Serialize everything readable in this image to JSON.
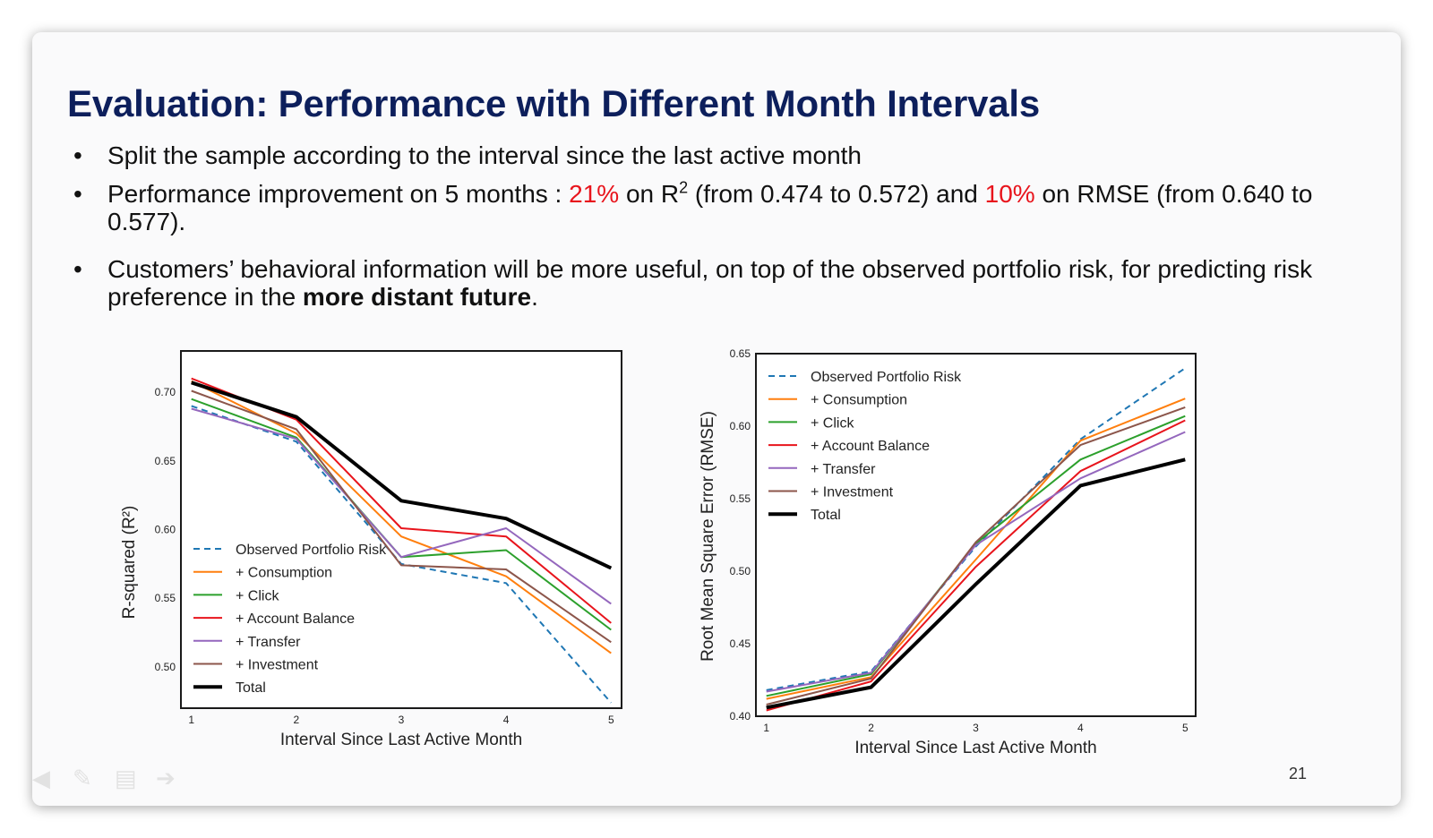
{
  "slide": {
    "title": "Evaluation: Performance with Different Month Intervals",
    "bullet1": "Split the sample according to the interval since the last active month",
    "bullet2": {
      "p1": "Performance improvement on 5 months : ",
      "pct1": "21%",
      "p2": " on R",
      "sup": "2",
      "p3": " (from 0.474 to 0.572) and ",
      "pct2": "10%",
      "p4": " on RMSE (from 0.640 to 0.577)."
    },
    "bullet3": {
      "p1": "Customers’ behavioral information will be more useful, on top of the observed portfolio risk, for predicting risk preference in the ",
      "bold": "more distant future",
      "p2": "."
    },
    "bullet_symbol": "•",
    "page_number": "21",
    "colors": {
      "title": "#0d1f5c",
      "highlight": "#e8141c"
    }
  },
  "chart_data": [
    {
      "type": "line",
      "xlabel": "Interval Since Last Active Month",
      "ylabel": "R-squared (R²)",
      "x": [
        1,
        2,
        3,
        4,
        5
      ],
      "xlim": [
        0.9,
        5.1
      ],
      "ylim": [
        0.47,
        0.73
      ],
      "yticks": [
        "0.50",
        "0.55",
        "0.60",
        "0.65",
        "0.70"
      ],
      "ytick_values": [
        0.5,
        0.55,
        0.6,
        0.65,
        0.7
      ],
      "legend_position": "bottom-left",
      "grid": false,
      "series": [
        {
          "name": "Observed Portfolio Risk",
          "color": "#1f77b4",
          "dashed": true,
          "width": 2,
          "values": [
            0.69,
            0.664,
            0.575,
            0.561,
            0.474
          ]
        },
        {
          "name": "+ Consumption",
          "color": "#ff7f0e",
          "dashed": false,
          "width": 2,
          "values": [
            0.708,
            0.67,
            0.595,
            0.566,
            0.51
          ]
        },
        {
          "name": "+ Click",
          "color": "#2ca02c",
          "dashed": false,
          "width": 2,
          "values": [
            0.695,
            0.667,
            0.58,
            0.585,
            0.527
          ]
        },
        {
          "name": "+ Account Balance",
          "color": "#e8141c",
          "dashed": false,
          "width": 2,
          "values": [
            0.71,
            0.68,
            0.601,
            0.595,
            0.532
          ]
        },
        {
          "name": "+ Transfer",
          "color": "#9467bd",
          "dashed": false,
          "width": 2,
          "values": [
            0.688,
            0.666,
            0.58,
            0.601,
            0.546
          ]
        },
        {
          "name": "+ Investment",
          "color": "#8c564b",
          "dashed": false,
          "width": 2,
          "values": [
            0.701,
            0.673,
            0.574,
            0.571,
            0.518
          ]
        },
        {
          "name": "Total",
          "color": "#000000",
          "dashed": false,
          "width": 4,
          "values": [
            0.707,
            0.682,
            0.621,
            0.608,
            0.572
          ]
        }
      ]
    },
    {
      "type": "line",
      "xlabel": "Interval Since Last Active Month",
      "ylabel": "Root Mean Square Error (RMSE)",
      "x": [
        1,
        2,
        3,
        4,
        5
      ],
      "xlim": [
        0.9,
        5.1
      ],
      "ylim": [
        0.4,
        0.65
      ],
      "yticks": [
        "0.40",
        "0.45",
        "0.50",
        "0.55",
        "0.60",
        "0.65"
      ],
      "ytick_values": [
        0.4,
        0.45,
        0.5,
        0.55,
        0.6,
        0.65
      ],
      "legend_position": "top-left",
      "grid": false,
      "series": [
        {
          "name": "Observed Portfolio Risk",
          "color": "#1f77b4",
          "dashed": true,
          "width": 2,
          "values": [
            0.418,
            0.431,
            0.517,
            0.591,
            0.64
          ]
        },
        {
          "name": "+ Consumption",
          "color": "#ff7f0e",
          "dashed": false,
          "width": 2,
          "values": [
            0.412,
            0.427,
            0.508,
            0.59,
            0.619
          ]
        },
        {
          "name": "+ Click",
          "color": "#2ca02c",
          "dashed": false,
          "width": 2,
          "values": [
            0.414,
            0.429,
            0.519,
            0.577,
            0.607
          ]
        },
        {
          "name": "+ Account Balance",
          "color": "#e8141c",
          "dashed": false,
          "width": 2,
          "values": [
            0.404,
            0.424,
            0.503,
            0.569,
            0.604
          ]
        },
        {
          "name": "+ Transfer",
          "color": "#9467bd",
          "dashed": false,
          "width": 2,
          "values": [
            0.417,
            0.43,
            0.518,
            0.564,
            0.596
          ]
        },
        {
          "name": "+ Investment",
          "color": "#8c564b",
          "dashed": false,
          "width": 2,
          "values": [
            0.408,
            0.426,
            0.52,
            0.587,
            0.613
          ]
        },
        {
          "name": "Total",
          "color": "#000000",
          "dashed": false,
          "width": 4,
          "values": [
            0.406,
            0.42,
            0.491,
            0.559,
            0.577
          ]
        }
      ]
    }
  ]
}
